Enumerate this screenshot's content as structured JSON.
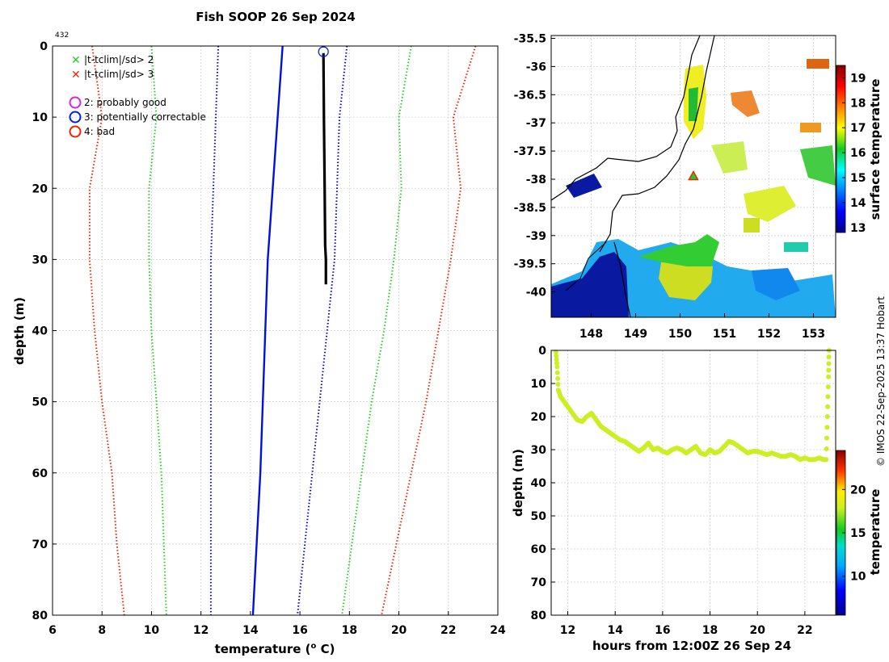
{
  "title": "Fish SOOP 26 Sep 2024",
  "profile_id": "432",
  "copyright": "© IMOS 22-Sep-2025 13:37 Hobart",
  "legend": [
    {
      "marker": "x",
      "color": "#22cc22",
      "label": "|t-tclim|/sd> 2"
    },
    {
      "marker": "x",
      "color": "#ee2200",
      "label": "|t-tclim|/sd> 3"
    },
    {
      "marker": "o",
      "color": "#dd22dd",
      "label": "2: probably good"
    },
    {
      "marker": "o",
      "color": "#0022dd",
      "label": "3: potentially correctable"
    },
    {
      "marker": "o",
      "color": "#ee2200",
      "label": "4: bad"
    }
  ],
  "chart_data": [
    {
      "type": "line",
      "name": "temperature-profile",
      "xlabel": "temperature (o C)",
      "ylabel": "depth (m)",
      "xlim": [
        6,
        24
      ],
      "ylim": [
        80,
        0
      ],
      "xticks": [
        "6",
        "8",
        "10",
        "12",
        "14",
        "16",
        "18",
        "20",
        "22",
        "24"
      ],
      "yticks": [
        "0",
        "10",
        "20",
        "30",
        "40",
        "50",
        "60",
        "70",
        "80"
      ],
      "grid": true,
      "series": [
        {
          "name": "clim -3sd",
          "color": "#ee2200",
          "style": "dotted",
          "depth": [
            0,
            10,
            20,
            30,
            40,
            50,
            60,
            70,
            80
          ],
          "temp": [
            7.6,
            8.0,
            7.5,
            7.5,
            7.7,
            8.0,
            8.4,
            8.6,
            8.9
          ]
        },
        {
          "name": "clim -2sd",
          "color": "#22cc22",
          "style": "dotted",
          "depth": [
            0,
            10,
            20,
            30,
            40,
            50,
            60,
            70,
            80
          ],
          "temp": [
            10.0,
            10.2,
            9.9,
            9.9,
            10.0,
            10.2,
            10.4,
            10.5,
            10.6
          ]
        },
        {
          "name": "clim -1sd",
          "color": "#0000cc",
          "style": "dotted",
          "depth": [
            0,
            10,
            20,
            30,
            40,
            50,
            60,
            70,
            80
          ],
          "temp": [
            12.7,
            12.6,
            12.5,
            12.4,
            12.4,
            12.4,
            12.4,
            12.4,
            12.4
          ]
        },
        {
          "name": "clim mean",
          "color": "#0011dd",
          "style": "solid",
          "depth": [
            0,
            10,
            20,
            30,
            40,
            50,
            60,
            70,
            80
          ],
          "temp": [
            15.3,
            15.1,
            14.9,
            14.7,
            14.6,
            14.5,
            14.4,
            14.25,
            14.1
          ]
        },
        {
          "name": "clim +1sd",
          "color": "#0000cc",
          "style": "dotted",
          "depth": [
            0,
            10,
            20,
            30,
            40,
            50,
            60,
            70,
            80
          ],
          "temp": [
            17.9,
            17.6,
            17.5,
            17.4,
            17.1,
            16.8,
            16.5,
            16.2,
            15.9
          ]
        },
        {
          "name": "clim +2sd",
          "color": "#22cc22",
          "style": "dotted",
          "depth": [
            0,
            10,
            20,
            30,
            40,
            50,
            60,
            70,
            80
          ],
          "temp": [
            20.5,
            20.0,
            20.1,
            19.8,
            19.4,
            18.9,
            18.5,
            18.1,
            17.7
          ]
        },
        {
          "name": "clim +3sd",
          "color": "#ee2200",
          "style": "dotted",
          "depth": [
            0,
            10,
            20,
            30,
            40,
            50,
            60,
            70,
            80
          ],
          "temp": [
            23.1,
            22.2,
            22.5,
            22.1,
            21.6,
            21.1,
            20.5,
            19.9,
            19.3
          ]
        },
        {
          "name": "observed",
          "color": "#000000",
          "style": "solid",
          "depth": [
            1,
            10,
            20,
            28,
            30,
            33.5
          ],
          "temp": [
            16.95,
            16.97,
            17.0,
            17.02,
            17.05,
            17.05
          ]
        }
      ],
      "flag_marker": {
        "label": "3: potentially correctable",
        "temp": 16.95,
        "depth": 0.8
      }
    },
    {
      "type": "heatmap",
      "name": "surface-temperature-map",
      "xticks": [
        "148",
        "149",
        "150",
        "151",
        "152",
        "153"
      ],
      "yticks": [
        "-35.5",
        "-36",
        "-36.5",
        "-37",
        "-37.5",
        "-38",
        "-38.5",
        "-39",
        "-39.5",
        "-40"
      ],
      "xlim": [
        147.1,
        153.5
      ],
      "ylim": [
        -40.45,
        -35.45
      ],
      "colorbar_label": "surface temperature",
      "colorbar_ticks": [
        "13",
        "14",
        "15",
        "16",
        "17",
        "18",
        "19"
      ],
      "colorbar_range": [
        12.8,
        19.5
      ],
      "station": {
        "lon": 150.3,
        "lat": -37.95
      }
    },
    {
      "type": "scatter",
      "name": "depth-time",
      "xlabel": "hours from 12:00Z 26 Sep 24",
      "ylabel": "depth (m)",
      "xlim": [
        11.3,
        23.3
      ],
      "ylim": [
        80,
        0
      ],
      "xticks": [
        "12",
        "14",
        "16",
        "18",
        "20",
        "22"
      ],
      "yticks": [
        "0",
        "10",
        "20",
        "30",
        "40",
        "50",
        "60",
        "70",
        "80"
      ],
      "colorbar_label": "temperature",
      "colorbar_ticks": [
        "10",
        "15",
        "20"
      ],
      "colorbar_range": [
        5.5,
        24.5
      ],
      "point_color": "#ccee22",
      "hours": [
        11.5,
        11.55,
        11.6,
        11.7,
        11.8,
        12.0,
        12.2,
        12.4,
        12.6,
        12.8,
        13.0,
        13.2,
        13.4,
        13.6,
        13.8,
        14.0,
        14.2,
        14.4,
        14.6,
        14.8,
        15.0,
        15.2,
        15.4,
        15.6,
        15.8,
        16.0,
        16.2,
        16.4,
        16.6,
        16.8,
        17.0,
        17.2,
        17.4,
        17.6,
        17.8,
        18.0,
        18.2,
        18.4,
        18.6,
        18.8,
        19.0,
        19.2,
        19.4,
        19.6,
        19.8,
        20.0,
        20.2,
        20.4,
        20.6,
        20.8,
        21.0,
        21.2,
        21.4,
        21.6,
        21.8,
        22.0,
        22.2,
        22.4,
        22.6,
        22.8,
        22.9,
        22.95,
        23.0,
        23.02
      ],
      "depths": [
        0.5,
        5,
        12,
        14,
        15,
        17,
        19,
        21,
        21.5,
        20,
        19,
        21,
        23,
        24,
        25,
        26,
        27,
        27.5,
        28.5,
        29.5,
        30.5,
        29.5,
        28,
        30,
        29.5,
        30.5,
        31,
        30,
        29.5,
        30,
        31,
        30,
        29,
        31,
        31.5,
        30,
        31,
        30.5,
        29,
        27.5,
        28,
        29,
        30,
        31,
        30.5,
        30.5,
        31,
        31.5,
        31,
        31.5,
        32,
        32,
        31.5,
        32,
        33,
        32.5,
        33,
        33,
        32.5,
        33,
        33,
        20,
        8,
        0
      ]
    }
  ]
}
